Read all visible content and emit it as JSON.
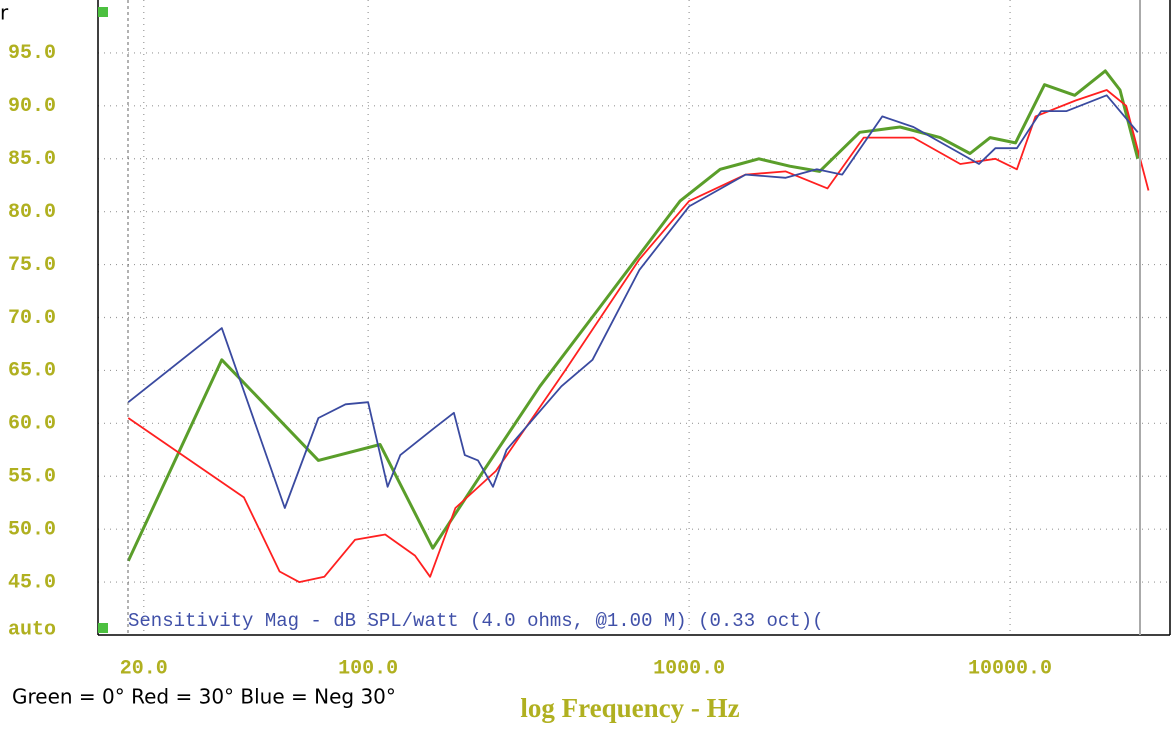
{
  "chart_data": {
    "type": "line",
    "title": "r",
    "annotation": "Sensitivity Mag - dB SPL/watt (4.0 ohms, @1.00 M) (0.33 oct)(",
    "xlabel": "log Frequency - Hz",
    "note": "Green = 0° Red = 30° Blue = Neg 30°",
    "xscale": "log",
    "xlim": [
      14.4,
      31500
    ],
    "xticks": [
      {
        "value": 20,
        "label": "20.0"
      },
      {
        "value": 100,
        "label": "100.0"
      },
      {
        "value": 1000,
        "label": "1000.0"
      },
      {
        "value": 10000,
        "label": "10000.0"
      }
    ],
    "ylim": [
      40,
      100
    ],
    "yticks": [
      {
        "value": 40,
        "label": "auto"
      },
      {
        "value": 45,
        "label": "45.0"
      },
      {
        "value": 50,
        "label": "50.0"
      },
      {
        "value": 55,
        "label": "55.0"
      },
      {
        "value": 60,
        "label": "60.0"
      },
      {
        "value": 65,
        "label": "65.0"
      },
      {
        "value": 70,
        "label": "70.0"
      },
      {
        "value": 75,
        "label": "75.0"
      },
      {
        "value": 80,
        "label": "80.0"
      },
      {
        "value": 85,
        "label": "85.0"
      },
      {
        "value": 90,
        "label": "90.0"
      },
      {
        "value": 95,
        "label": "95.0"
      }
    ],
    "grid": true,
    "series": [
      {
        "name": "Green",
        "color": "#5a9e2a",
        "x": [
          17.9,
          35,
          70,
          109,
          159,
          223,
          343,
          528,
          703,
          937,
          1250,
          1440,
          1650,
          2060,
          2550,
          3400,
          4540,
          6060,
          7500,
          8670,
          10400,
          12800,
          15900,
          19800,
          22000,
          25000
        ],
        "values": [
          47,
          66,
          56.5,
          58,
          48.2,
          55,
          63.5,
          71,
          76,
          81,
          84,
          84.5,
          85,
          84.3,
          83.8,
          87.5,
          88,
          87,
          85.5,
          87,
          86.5,
          92,
          91,
          93.3,
          91.5,
          85
        ]
      },
      {
        "name": "Red",
        "color": "#ff2020",
        "x": [
          17.9,
          41,
          53,
          61,
          73,
          91,
          113,
          140,
          156,
          187,
          250,
          411,
          700,
          1000,
          1500,
          2000,
          2700,
          3500,
          5000,
          7000,
          9000,
          10500,
          12000,
          16000,
          20000,
          23000,
          27000
        ],
        "values": [
          60.5,
          53,
          46,
          45,
          45.5,
          49,
          49.5,
          47.5,
          45.5,
          52,
          55.5,
          65,
          75.5,
          81,
          83.5,
          83.8,
          82.2,
          87,
          87,
          84.5,
          85,
          84,
          89,
          90.5,
          91.5,
          90,
          82
        ]
      },
      {
        "name": "Blue",
        "color": "#3a4aa0",
        "x": [
          17.9,
          35,
          55,
          70,
          85,
          100,
          115,
          126,
          160,
          185,
          200,
          220,
          245,
          270,
          400,
          500,
          700,
          1000,
          1500,
          2000,
          2500,
          3000,
          4000,
          5000,
          8000,
          9000,
          10500,
          12500,
          15000,
          20000,
          25000
        ],
        "values": [
          62,
          69,
          52,
          60.5,
          61.8,
          62,
          54,
          57,
          59.5,
          61,
          57,
          56.5,
          54,
          57.5,
          63.5,
          66,
          74.5,
          80.5,
          83.5,
          83.2,
          84,
          83.5,
          89,
          88,
          84.5,
          86,
          86,
          89.5,
          89.5,
          91,
          87.5
        ]
      }
    ]
  }
}
